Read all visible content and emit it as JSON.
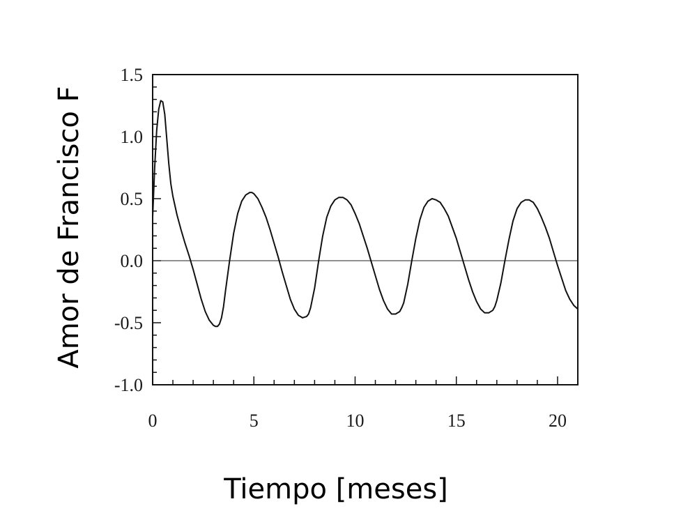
{
  "chart_data": {
    "type": "line",
    "xlabel": "Tiempo [meses]",
    "ylabel": "Amor de Francisco F",
    "xlim": [
      0,
      21
    ],
    "ylim": [
      -1.0,
      1.5
    ],
    "x_ticks": [
      0,
      5,
      10,
      15,
      20
    ],
    "y_ticks": [
      1.5,
      1.0,
      0.5,
      0.0,
      -0.5,
      -1.0
    ],
    "x_tick_labels": [
      "0",
      "5",
      "10",
      "15",
      "20"
    ],
    "y_tick_labels": [
      "1.5",
      "1.0",
      "0.5",
      "0.0",
      "-0.5",
      "-1.0"
    ],
    "reference_line_y": 0.0,
    "grid": false,
    "series": [
      {
        "x": [
          0.0,
          0.1,
          0.2,
          0.3,
          0.4,
          0.5,
          0.6,
          0.7,
          0.8,
          0.9,
          1.0,
          1.2,
          1.4,
          1.6,
          1.8,
          2.0,
          2.2,
          2.4,
          2.6,
          2.8,
          3.0,
          3.1,
          3.2,
          3.3,
          3.4,
          3.5,
          3.6,
          3.8,
          4.0,
          4.2,
          4.4,
          4.6,
          4.8,
          4.9,
          5.0,
          5.2,
          5.4,
          5.6,
          5.8,
          6.0,
          6.2,
          6.4,
          6.6,
          6.8,
          7.0,
          7.2,
          7.4,
          7.6,
          7.7,
          7.8,
          8.0,
          8.2,
          8.4,
          8.6,
          8.8,
          9.0,
          9.2,
          9.4,
          9.5,
          9.6,
          9.8,
          10.0,
          10.2,
          10.4,
          10.6,
          10.8,
          11.0,
          11.2,
          11.4,
          11.6,
          11.8,
          12.0,
          12.2,
          12.3,
          12.4,
          12.6,
          12.8,
          13.0,
          13.2,
          13.4,
          13.6,
          13.8,
          14.0,
          14.1,
          14.2,
          14.4,
          14.6,
          14.8,
          15.0,
          15.2,
          15.4,
          15.6,
          15.8,
          16.0,
          16.2,
          16.4,
          16.6,
          16.8,
          16.9,
          17.0,
          17.2,
          17.4,
          17.6,
          17.8,
          18.0,
          18.2,
          18.4,
          18.6,
          18.7,
          18.8,
          19.0,
          19.2,
          19.4,
          19.6,
          19.8,
          20.0,
          20.2,
          20.4,
          20.6,
          20.8,
          21.0
        ],
        "y": [
          0.35,
          0.75,
          1.05,
          1.22,
          1.29,
          1.28,
          1.18,
          0.98,
          0.78,
          0.62,
          0.52,
          0.37,
          0.25,
          0.14,
          0.04,
          -0.07,
          -0.19,
          -0.31,
          -0.41,
          -0.48,
          -0.52,
          -0.53,
          -0.53,
          -0.51,
          -0.46,
          -0.37,
          -0.24,
          0.0,
          0.22,
          0.38,
          0.48,
          0.53,
          0.55,
          0.55,
          0.54,
          0.5,
          0.43,
          0.35,
          0.25,
          0.14,
          0.03,
          -0.09,
          -0.2,
          -0.31,
          -0.39,
          -0.44,
          -0.46,
          -0.45,
          -0.43,
          -0.38,
          -0.22,
          0.0,
          0.2,
          0.35,
          0.44,
          0.49,
          0.51,
          0.51,
          0.5,
          0.49,
          0.45,
          0.38,
          0.3,
          0.2,
          0.1,
          -0.01,
          -0.12,
          -0.23,
          -0.32,
          -0.39,
          -0.43,
          -0.43,
          -0.41,
          -0.38,
          -0.34,
          -0.19,
          0.0,
          0.18,
          0.33,
          0.43,
          0.48,
          0.5,
          0.49,
          0.48,
          0.47,
          0.42,
          0.36,
          0.27,
          0.18,
          0.07,
          -0.04,
          -0.15,
          -0.25,
          -0.33,
          -0.39,
          -0.42,
          -0.42,
          -0.4,
          -0.37,
          -0.32,
          -0.18,
          0.0,
          0.17,
          0.32,
          0.42,
          0.47,
          0.49,
          0.49,
          0.48,
          0.47,
          0.42,
          0.35,
          0.27,
          0.18,
          0.07,
          -0.04,
          -0.14,
          -0.24,
          -0.31,
          -0.36,
          -0.39
        ]
      }
    ]
  }
}
